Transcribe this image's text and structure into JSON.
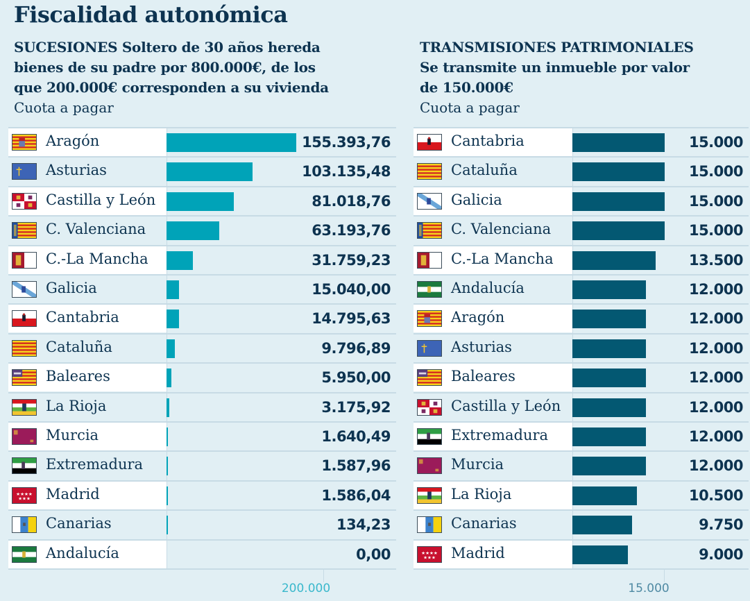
{
  "title": "Fiscalidad autonómica",
  "colors": {
    "left_bar": "#00a3b8",
    "right_bar": "#035872",
    "left_tick": "#3ab8cc",
    "right_tick": "#4f8aa3"
  },
  "chart_data": [
    {
      "type": "bar",
      "orientation": "horizontal",
      "title": "SUCESIONES Soltero de 30 años hereda bienes de su padre por 800.000€, de los que 200.000€ corresponden a su vivienda",
      "heading": "SUCESIONES",
      "subtitle_lines": [
        "SUCESIONES Soltero de 30 años hereda",
        "bienes de su padre por 800.000€, de los",
        "que 200.000€ corresponden a su vivienda"
      ],
      "ylabel": "Cuota a pagar",
      "tick_label": "200.000",
      "tick_value": 200000,
      "xlim": [
        0,
        200000
      ],
      "categories": [
        "Aragón",
        "Asturias",
        "Castilla y León",
        "C. Valenciana",
        "C.-La Mancha",
        "Galicia",
        "Cantabria",
        "Cataluña",
        "Baleares",
        "La Rioja",
        "Murcia",
        "Extremadura",
        "Madrid",
        "Canarias",
        "Andalucía"
      ],
      "values": [
        155393.76,
        103135.48,
        81018.76,
        63193.76,
        31759.23,
        15040.0,
        14795.63,
        9796.89,
        5950.0,
        3175.92,
        1640.49,
        1587.96,
        1586.04,
        134.23,
        0.0
      ],
      "labels": [
        "155.393,76",
        "103.135,48",
        "81.018,76",
        "63.193,76",
        "31.759,23",
        "15.040,00",
        "14.795,63",
        "9.796,89",
        "5.950,00",
        "3.175,92",
        "1.640,49",
        "1.587,96",
        "1.586,04",
        "134,23",
        "0,00"
      ],
      "flags": [
        "aragon",
        "asturias",
        "castilla-leon",
        "valenciana",
        "la-mancha",
        "galicia",
        "cantabria",
        "cataluna",
        "baleares",
        "la-rioja",
        "murcia",
        "extremadura",
        "madrid",
        "canarias",
        "andalucia"
      ]
    },
    {
      "type": "bar",
      "orientation": "horizontal",
      "title": "TRANSMISIONES PATRIMONIALES Se transmite un inmueble por valor de 150.000€",
      "subtitle_lines": [
        "TRANSMISIONES PATRIMONIALES",
        "Se transmite un inmueble por valor",
        "de 150.000€"
      ],
      "ylabel": "Cuota a pagar",
      "tick_label": "15.000",
      "tick_value": 15000,
      "xlim": [
        0,
        15000
      ],
      "categories": [
        "Cantabria",
        "Cataluña",
        "Galicia",
        "C. Valenciana",
        "C.-La Mancha",
        "Andalucía",
        "Aragón",
        "Asturias",
        "Baleares",
        "Castilla y León",
        "Extremadura",
        "Murcia",
        "La Rioja",
        "Canarias",
        "Madrid"
      ],
      "values": [
        15000,
        15000,
        15000,
        15000,
        13500,
        12000,
        12000,
        12000,
        12000,
        12000,
        12000,
        12000,
        10500,
        9750,
        9000
      ],
      "labels": [
        "15.000",
        "15.000",
        "15.000",
        "15.000",
        "13.500",
        "12.000",
        "12.000",
        "12.000",
        "12.000",
        "12.000",
        "12.000",
        "12.000",
        "10.500",
        "9.750",
        "9.000"
      ],
      "flags": [
        "cantabria",
        "cataluna",
        "galicia",
        "valenciana",
        "la-mancha",
        "andalucia",
        "aragon",
        "asturias",
        "baleares",
        "castilla-leon",
        "extremadura",
        "murcia",
        "la-rioja",
        "canarias",
        "madrid"
      ]
    }
  ]
}
